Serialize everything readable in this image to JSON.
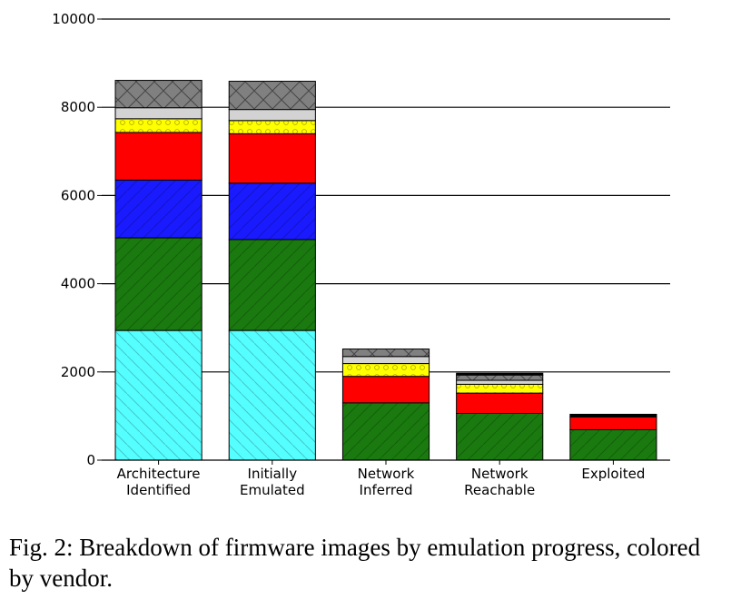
{
  "chart_data": {
    "type": "bar",
    "stacked": true,
    "categories": [
      "Architecture\nIdentified",
      "Initially\nEmulated",
      "Network\nInferred",
      "Network\nReachable",
      "Exploited"
    ],
    "ylim": [
      0,
      10000
    ],
    "yticks": [
      0,
      2000,
      4000,
      6000,
      8000,
      10000
    ],
    "grid": true,
    "series": [
      {
        "color": "#55ffff",
        "hatch": "diagonal-back",
        "values": [
          2940,
          2940,
          0,
          0,
          0
        ]
      },
      {
        "color": "#1a7a0f",
        "hatch": "diagonal",
        "values": [
          2100,
          2060,
          1300,
          1060,
          690
        ]
      },
      {
        "color": "#1a1aff",
        "hatch": "diagonal",
        "values": [
          1310,
          1280,
          0,
          0,
          0
        ]
      },
      {
        "color": "#ff0000",
        "hatch": "none",
        "values": [
          1080,
          1120,
          600,
          460,
          290
        ]
      },
      {
        "color": "#ffff00",
        "hatch": "circles",
        "values": [
          310,
          300,
          290,
          200,
          0
        ]
      },
      {
        "color": "#d3d3d3",
        "hatch": "none",
        "values": [
          250,
          250,
          160,
          90,
          0
        ]
      },
      {
        "color": "#808080",
        "hatch": "cross",
        "values": [
          620,
          640,
          170,
          120,
          0
        ]
      },
      {
        "color": "#000000",
        "hatch": "none",
        "values": [
          0,
          0,
          0,
          40,
          60
        ]
      }
    ]
  },
  "caption": "Fig. 2: Breakdown of firmware images by emulation progress, colored by vendor."
}
